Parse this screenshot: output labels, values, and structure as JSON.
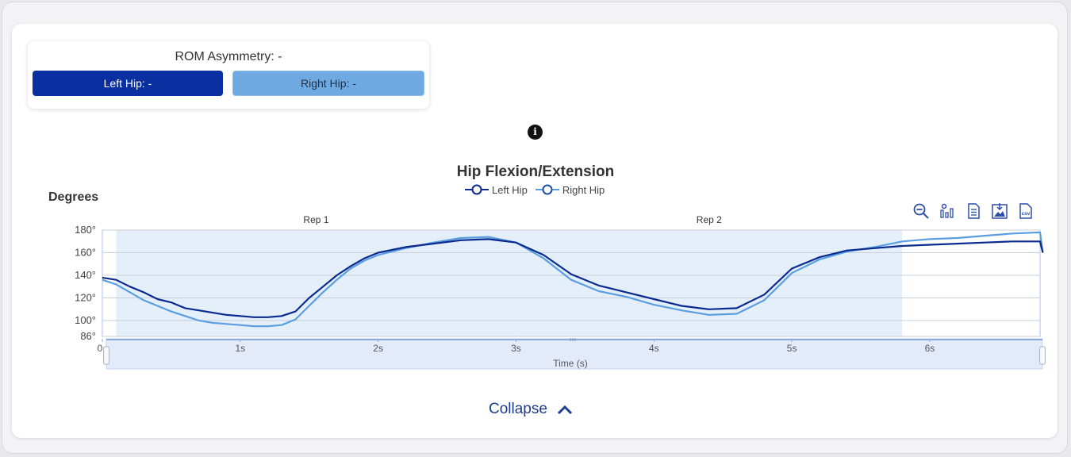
{
  "rom": {
    "title": "ROM Asymmetry: -",
    "left_label": "Left Hip: -",
    "right_label": "Right Hip: -"
  },
  "info_icon": "info-icon",
  "colors": {
    "left": "#0a2a8f",
    "right": "#5b9ee0",
    "band": "#e4effa",
    "navigator": "#e3ebfa"
  },
  "toolbar": {
    "icons": [
      "zoom-out-icon",
      "bar-chart-icon",
      "document-icon",
      "image-download-icon",
      "csv-download-icon"
    ]
  },
  "collapse_label": "Collapse",
  "chart_data": {
    "type": "line",
    "title": "Hip Flexion/Extension",
    "ylabel": "Degrees",
    "xlabel": "Time (s)",
    "ylim": [
      86,
      180
    ],
    "xlim": [
      0,
      6.8
    ],
    "yticks": [
      "180°",
      "160°",
      "140°",
      "120°",
      "100°",
      "86°"
    ],
    "ytick_values": [
      180,
      160,
      140,
      120,
      100,
      86
    ],
    "xticks": [
      "0",
      "1s",
      "2s",
      "3s",
      "4s",
      "5s",
      "6s"
    ],
    "xtick_values": [
      0,
      1,
      2,
      3,
      4,
      5,
      6
    ],
    "bands": [
      {
        "label": "Rep 1",
        "from": 0.1,
        "to": 3.0
      },
      {
        "label": "Rep 2",
        "from": 3.0,
        "to": 5.8
      }
    ],
    "series": [
      {
        "name": "Left Hip",
        "x": [
          0,
          0.1,
          0.2,
          0.3,
          0.4,
          0.5,
          0.6,
          0.7,
          0.8,
          0.9,
          1.0,
          1.1,
          1.2,
          1.3,
          1.4,
          1.5,
          1.6,
          1.7,
          1.8,
          1.9,
          2.0,
          2.2,
          2.4,
          2.6,
          2.8,
          3.0,
          3.2,
          3.4,
          3.6,
          3.8,
          4.0,
          4.2,
          4.4,
          4.6,
          4.8,
          5.0,
          5.2,
          5.4,
          5.6,
          5.8,
          6.0,
          6.2,
          6.4,
          6.6,
          6.8,
          6.82
        ],
        "y": [
          138,
          136,
          130,
          125,
          119,
          116,
          111,
          109,
          107,
          105,
          104,
          103,
          103,
          104,
          108,
          120,
          130,
          140,
          148,
          155,
          160,
          165,
          168,
          171,
          172,
          169,
          158,
          141,
          131,
          125,
          119,
          113,
          110,
          111,
          123,
          146,
          156,
          162,
          164,
          166,
          167,
          168,
          169,
          170,
          170,
          160
        ]
      },
      {
        "name": "Right Hip",
        "x": [
          0,
          0.1,
          0.2,
          0.3,
          0.4,
          0.5,
          0.6,
          0.7,
          0.8,
          0.9,
          1.0,
          1.1,
          1.2,
          1.3,
          1.4,
          1.5,
          1.6,
          1.7,
          1.8,
          1.9,
          2.0,
          2.2,
          2.4,
          2.6,
          2.8,
          3.0,
          3.2,
          3.4,
          3.6,
          3.8,
          4.0,
          4.2,
          4.4,
          4.6,
          4.8,
          5.0,
          5.2,
          5.4,
          5.6,
          5.8,
          6.0,
          6.2,
          6.4,
          6.6,
          6.8,
          6.82
        ],
        "y": [
          136,
          132,
          125,
          118,
          113,
          108,
          104,
          100,
          98,
          97,
          96,
          95,
          95,
          96,
          101,
          113,
          125,
          136,
          146,
          153,
          158,
          164,
          169,
          173,
          174,
          169,
          155,
          136,
          126,
          121,
          114,
          109,
          105,
          106,
          118,
          142,
          154,
          161,
          165,
          170,
          172,
          173,
          175,
          177,
          178,
          160
        ]
      }
    ]
  }
}
